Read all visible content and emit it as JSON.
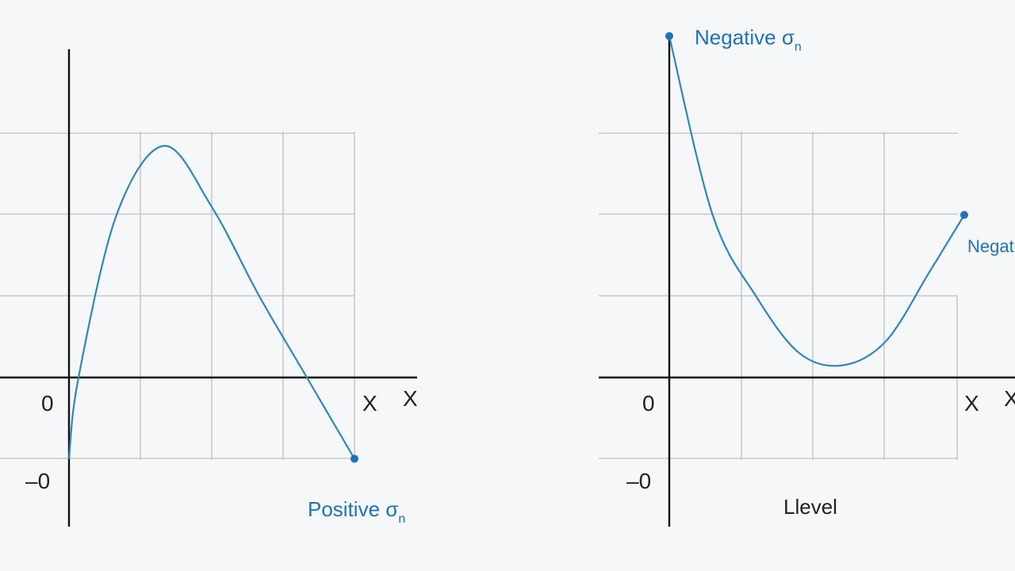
{
  "colors": {
    "curve": "#2f88b8",
    "point": "#1e73b8",
    "label": "#1e73b8",
    "axis": "#111111",
    "grid": "#c9c9c9",
    "background": "#f6f7f8"
  },
  "chart_data": [
    {
      "type": "line",
      "title": "",
      "xlabel": "X",
      "ylabel": "",
      "grid": true,
      "tick_labels": {
        "zero": "0",
        "neg": "–0",
        "x_marker": "X"
      },
      "series": [
        {
          "x": [
            0,
            0.1,
            0.5,
            1.0,
            1.5,
            2.0,
            2.5,
            3.0
          ],
          "y": [
            -1,
            0,
            2.0,
            2.85,
            2.1,
            1.0,
            0,
            -1
          ]
        }
      ],
      "end_point": {
        "x": 3.0,
        "y": -1
      },
      "annotation": {
        "text": "Positive σ",
        "sub": "n"
      }
    },
    {
      "type": "line",
      "title": "",
      "xlabel": "X",
      "ylabel": "",
      "grid": true,
      "tick_labels": {
        "zero": "0",
        "neg": "–0",
        "x_marker": "X"
      },
      "series": [
        {
          "x": [
            0,
            0.5,
            1.0,
            1.5,
            2.0,
            2.5,
            3.0,
            3.4
          ],
          "y": [
            4.2,
            2.0,
            1.0,
            0.3,
            0.15,
            0.45,
            1.3,
            2.0
          ]
        }
      ],
      "start_point": {
        "x": 0,
        "y": 4.2
      },
      "end_point": {
        "x": 3.4,
        "y": 2.0
      },
      "annotation_top": {
        "text": "Negative σ",
        "sub": "n"
      },
      "annotation_right": {
        "text": "Negative σ"
      },
      "bottom_label": "Llevel"
    }
  ]
}
